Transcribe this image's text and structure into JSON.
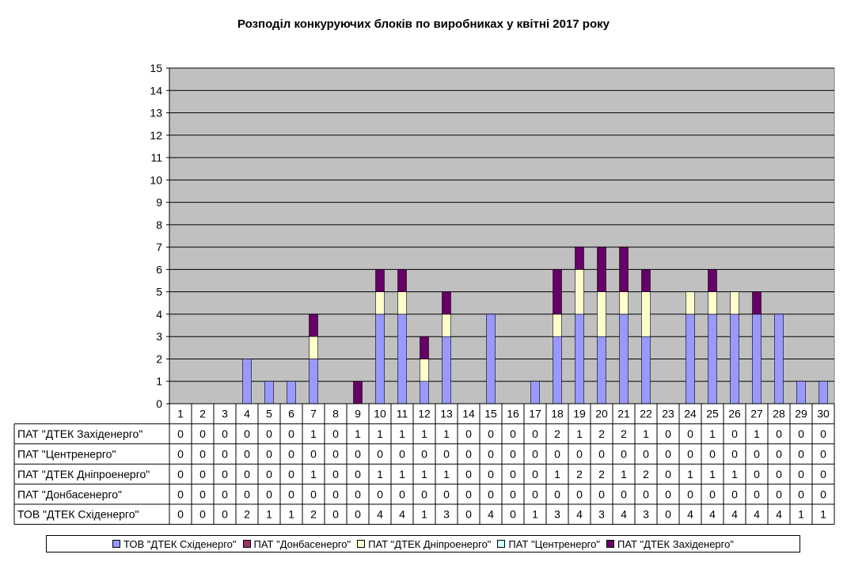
{
  "chart_data": {
    "type": "bar",
    "stacked": true,
    "title": "Розподіл конкуруючих блоків по виробниках у квітні 2017 року",
    "categories": [
      "1",
      "2",
      "3",
      "4",
      "5",
      "6",
      "7",
      "8",
      "9",
      "10",
      "11",
      "12",
      "13",
      "14",
      "15",
      "16",
      "17",
      "18",
      "19",
      "20",
      "21",
      "22",
      "23",
      "24",
      "25",
      "26",
      "27",
      "28",
      "29",
      "30"
    ],
    "ylim": [
      0,
      15
    ],
    "yticks": [
      0,
      1,
      2,
      3,
      4,
      5,
      6,
      7,
      8,
      9,
      10,
      11,
      12,
      13,
      14,
      15
    ],
    "grid": true,
    "legend_position": "bottom",
    "series": [
      {
        "name": "ТОВ \"ДТЕК Східенерго\"",
        "color": "#9999ff",
        "values": [
          0,
          0,
          0,
          2,
          1,
          1,
          2,
          0,
          0,
          4,
          4,
          1,
          3,
          0,
          4,
          0,
          1,
          3,
          4,
          3,
          4,
          3,
          0,
          4,
          4,
          4,
          4,
          4,
          1,
          1
        ]
      },
      {
        "name": "ПАТ \"Донбасенерго\"",
        "color": "#993366",
        "values": [
          0,
          0,
          0,
          0,
          0,
          0,
          0,
          0,
          0,
          0,
          0,
          0,
          0,
          0,
          0,
          0,
          0,
          0,
          0,
          0,
          0,
          0,
          0,
          0,
          0,
          0,
          0,
          0,
          0,
          0
        ]
      },
      {
        "name": "ПАТ \"ДТЕК Дніпроенерго\"",
        "color": "#ffffcc",
        "values": [
          0,
          0,
          0,
          0,
          0,
          0,
          1,
          0,
          0,
          1,
          1,
          1,
          1,
          0,
          0,
          0,
          0,
          1,
          2,
          2,
          1,
          2,
          0,
          1,
          1,
          1,
          0,
          0,
          0,
          0
        ]
      },
      {
        "name": "ПАТ \"Центренерго\"",
        "color": "#ccffff",
        "values": [
          0,
          0,
          0,
          0,
          0,
          0,
          0,
          0,
          0,
          0,
          0,
          0,
          0,
          0,
          0,
          0,
          0,
          0,
          0,
          0,
          0,
          0,
          0,
          0,
          0,
          0,
          0,
          0,
          0,
          0
        ]
      },
      {
        "name": "ПАТ \"ДТЕК Західенерго\"",
        "color": "#660066",
        "values": [
          0,
          0,
          0,
          0,
          0,
          0,
          1,
          0,
          1,
          1,
          1,
          1,
          1,
          0,
          0,
          0,
          0,
          2,
          1,
          2,
          2,
          1,
          0,
          0,
          1,
          0,
          1,
          0,
          0,
          0
        ]
      }
    ],
    "table_row_order": [
      4,
      3,
      2,
      1,
      0
    ],
    "plot_background": "#c0c0c0"
  }
}
